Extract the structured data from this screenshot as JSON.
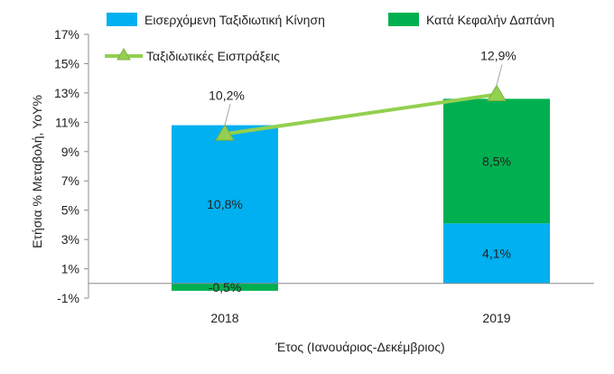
{
  "chart_data": {
    "type": "bar",
    "stacked": true,
    "categories": [
      "2018",
      "2019"
    ],
    "series": [
      {
        "name": "Εισερχόμενη Ταξιδιωτική Κίνηση",
        "kind": "bar",
        "color": "#00b0f0",
        "values": [
          10.8,
          4.1
        ],
        "labels": [
          "10,8%",
          "4,1%"
        ]
      },
      {
        "name": "Κατά Κεφαλήν Δαπάνη",
        "kind": "bar",
        "color": "#00b050",
        "values": [
          -0.5,
          8.5
        ],
        "labels": [
          "-0,5%",
          "8,5%"
        ]
      },
      {
        "name": "Ταξιδιωτικές Εισπράξεις",
        "kind": "line",
        "color": "#92d050",
        "values": [
          10.2,
          12.9
        ],
        "labels": [
          "10,2%",
          "12,9%"
        ]
      }
    ],
    "xlabel": "Έτος (Ιανουάριος-Δεκέμβριος)",
    "ylabel": "Ετήσια % Μεταβολή, YoY%",
    "ylim": [
      -1,
      17
    ],
    "yticks": [
      -1,
      1,
      3,
      5,
      7,
      9,
      11,
      13,
      15,
      17
    ],
    "ytick_labels": [
      "-1%",
      "1%",
      "3%",
      "5%",
      "7%",
      "9%",
      "11%",
      "13%",
      "15%",
      "17%"
    ],
    "grid": false,
    "legend_position": "top"
  }
}
